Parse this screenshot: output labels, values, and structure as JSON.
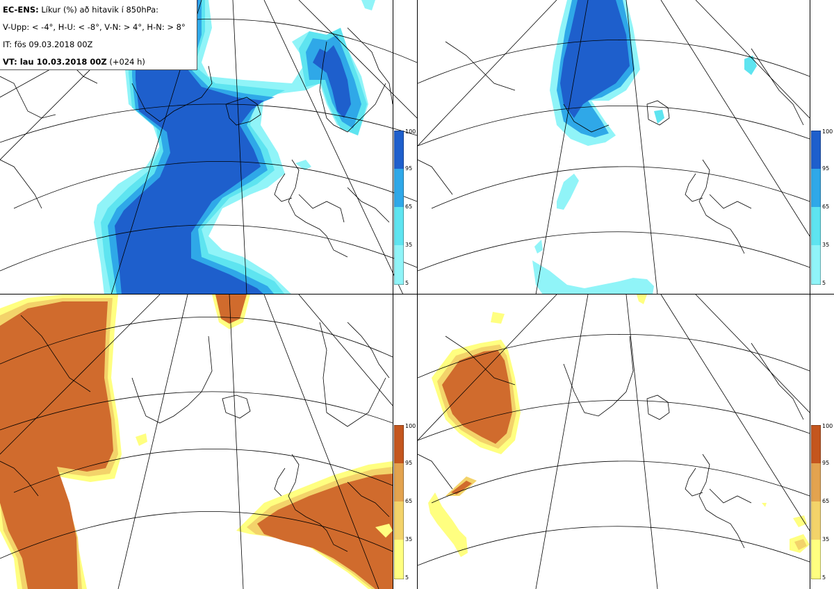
{
  "title": {
    "line1_bold": "EC-ENS:",
    "line1_rest": " Líkur (%) að hitavik í 850hPa:",
    "line2": "V-Upp: < -4°, H-U: < -8°, V-N: > 4°, H-N: > 8°",
    "line3": "IT: fös 09.03.2018 00Z",
    "line4_bold": "VT: lau 10.03.2018 00Z",
    "line4_rest": " (+024 h)"
  },
  "colorbar": {
    "ticks": [
      "100",
      "95",
      "65",
      "35",
      "5"
    ]
  },
  "colors": {
    "cold": [
      "#90f4f8",
      "#5ee4f0",
      "#2fa8e8",
      "#2163d0",
      "#1e5fcc"
    ],
    "warm": [
      "#ffff80",
      "#f3d36a",
      "#e3a34f",
      "#d06b2d",
      "#c4561e"
    ],
    "coast": "#000000",
    "grid": "#000000"
  },
  "panels": [
    {
      "id": "V-Upp",
      "variable": "cold < -4°"
    },
    {
      "id": "H-U",
      "variable": "cold < -8°"
    },
    {
      "id": "V-N",
      "variable": "warm > 4°"
    },
    {
      "id": "H-N",
      "variable": "warm > 8°"
    }
  ]
}
